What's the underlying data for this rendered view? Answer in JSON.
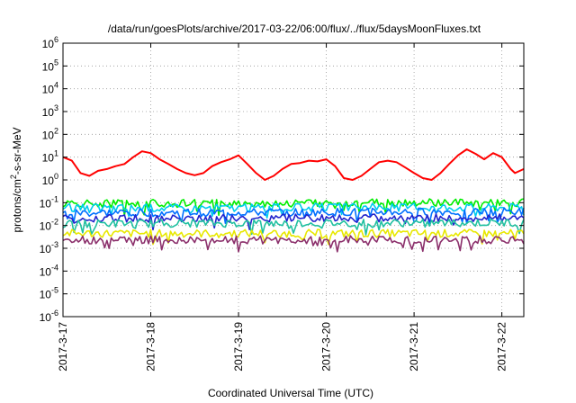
{
  "chart_data": {
    "type": "line",
    "title": "/data/run/goesPlots/archive/2017-03-22/06:00/flux/../flux/5daysMoonFluxes.txt",
    "xlabel": "Coordinated Universal Time (UTC)",
    "ylabel": {
      "base": "protons/cm",
      "sup": "2",
      "rest": "-s-sr-MeV"
    },
    "x_ticks": [
      "2017-3-17",
      "2017-3-18",
      "2017-3-19",
      "2017-3-20",
      "2017-3-21",
      "2017-3-22"
    ],
    "x_range": [
      0,
      5.25
    ],
    "y_scale": "log",
    "y_exponent_range": [
      -6,
      6
    ],
    "y_ticks": [
      {
        "base": "10",
        "exp": "-6"
      },
      {
        "base": "10",
        "exp": "-5"
      },
      {
        "base": "10",
        "exp": "-4"
      },
      {
        "base": "10",
        "exp": "-3"
      },
      {
        "base": "10",
        "exp": "-2"
      },
      {
        "base": "10",
        "exp": "-1"
      },
      {
        "base": "10",
        "exp": "0"
      },
      {
        "base": "10",
        "exp": "1"
      },
      {
        "base": "10",
        "exp": "2"
      },
      {
        "base": "10",
        "exp": "3"
      },
      {
        "base": "10",
        "exp": "4"
      },
      {
        "base": "10",
        "exp": "5"
      },
      {
        "base": "10",
        "exp": "6"
      }
    ],
    "grid": true,
    "series": [
      {
        "color": "#ff0000",
        "points": [
          [
            0,
            10
          ],
          [
            0.1,
            7
          ],
          [
            0.2,
            2
          ],
          [
            0.3,
            1.5
          ],
          [
            0.4,
            2.5
          ],
          [
            0.5,
            3
          ],
          [
            0.6,
            4
          ],
          [
            0.7,
            5
          ],
          [
            0.8,
            10
          ],
          [
            0.9,
            18
          ],
          [
            1.0,
            15
          ],
          [
            1.1,
            8
          ],
          [
            1.2,
            5
          ],
          [
            1.3,
            3
          ],
          [
            1.4,
            2
          ],
          [
            1.5,
            1.6
          ],
          [
            1.6,
            2
          ],
          [
            1.7,
            4
          ],
          [
            1.8,
            6
          ],
          [
            1.9,
            8
          ],
          [
            2.0,
            12
          ],
          [
            2.1,
            5
          ],
          [
            2.2,
            2
          ],
          [
            2.3,
            1
          ],
          [
            2.4,
            1.5
          ],
          [
            2.5,
            3
          ],
          [
            2.6,
            5
          ],
          [
            2.7,
            5.5
          ],
          [
            2.8,
            7
          ],
          [
            2.9,
            6.5
          ],
          [
            3.0,
            8
          ],
          [
            3.1,
            4
          ],
          [
            3.2,
            1.2
          ],
          [
            3.3,
            1
          ],
          [
            3.4,
            1.5
          ],
          [
            3.5,
            3
          ],
          [
            3.6,
            6
          ],
          [
            3.7,
            7
          ],
          [
            3.8,
            6
          ],
          [
            3.9,
            3.5
          ],
          [
            4.0,
            2
          ],
          [
            4.1,
            1.2
          ],
          [
            4.2,
            1
          ],
          [
            4.3,
            2
          ],
          [
            4.4,
            5
          ],
          [
            4.5,
            12
          ],
          [
            4.6,
            22
          ],
          [
            4.7,
            14
          ],
          [
            4.8,
            8
          ],
          [
            4.9,
            15
          ],
          [
            5.0,
            10
          ],
          [
            5.1,
            3
          ],
          [
            5.15,
            2
          ],
          [
            5.25,
            3
          ]
        ]
      },
      {
        "color": "#00ee00",
        "points": [
          [
            0,
            0.09
          ],
          [
            5.25,
            0.1
          ]
        ]
      },
      {
        "color": "#00ccee",
        "points": [
          [
            0,
            0.06
          ],
          [
            5.25,
            0.065
          ]
        ]
      },
      {
        "color": "#0070ff",
        "points": [
          [
            0,
            0.035
          ],
          [
            5.25,
            0.04
          ]
        ]
      },
      {
        "color": "#2222cc",
        "points": [
          [
            0,
            0.02
          ],
          [
            5.25,
            0.022
          ]
        ]
      },
      {
        "color": "#20c0a0",
        "points": [
          [
            0,
            0.012
          ],
          [
            5.25,
            0.013
          ]
        ]
      },
      {
        "color": "#e8e800",
        "points": [
          [
            0,
            0.0045
          ],
          [
            5.25,
            0.0045
          ]
        ]
      },
      {
        "color": "#8b2f6b",
        "points": [
          [
            0,
            0.0023
          ],
          [
            5.25,
            0.0024
          ]
        ]
      }
    ]
  }
}
